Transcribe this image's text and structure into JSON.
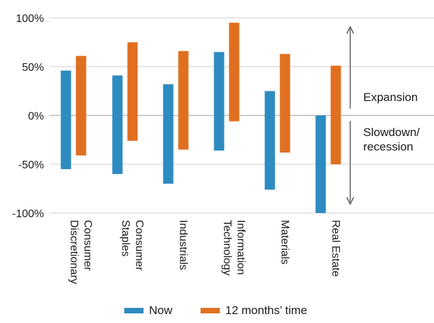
{
  "chart_data": {
    "type": "bar",
    "subtype": "floating-range",
    "categories": [
      [
        "Consumer",
        "Discretionary"
      ],
      [
        "Consumer",
        "Staples"
      ],
      [
        "Industrials"
      ],
      [
        "Information",
        "Technology"
      ],
      [
        "Materials"
      ],
      [
        "Real Estate"
      ]
    ],
    "series": [
      {
        "name": "Now",
        "color": "#2e8bc0",
        "ranges": [
          [
            -55,
            46
          ],
          [
            -60,
            41
          ],
          [
            -70,
            32
          ],
          [
            -36,
            65
          ],
          [
            -76,
            25
          ],
          [
            -100,
            0
          ]
        ]
      },
      {
        "name": "12 months’ time",
        "color": "#e07020",
        "ranges": [
          [
            -41,
            61
          ],
          [
            -26,
            75
          ],
          [
            -35,
            66
          ],
          [
            -6,
            95
          ],
          [
            -38,
            63
          ],
          [
            -50,
            51
          ]
        ]
      }
    ],
    "y_ticks": [
      "100%",
      "50%",
      "0%",
      "-50%",
      "-100%"
    ],
    "y_tick_values": [
      100,
      50,
      0,
      -50,
      -100
    ],
    "ylim": [
      -100,
      100
    ],
    "grid": "horizontal",
    "legend_position": "bottom",
    "annotations": {
      "upper": [
        "Expansion"
      ],
      "lower": [
        "Slowdown/",
        "recession"
      ]
    }
  }
}
